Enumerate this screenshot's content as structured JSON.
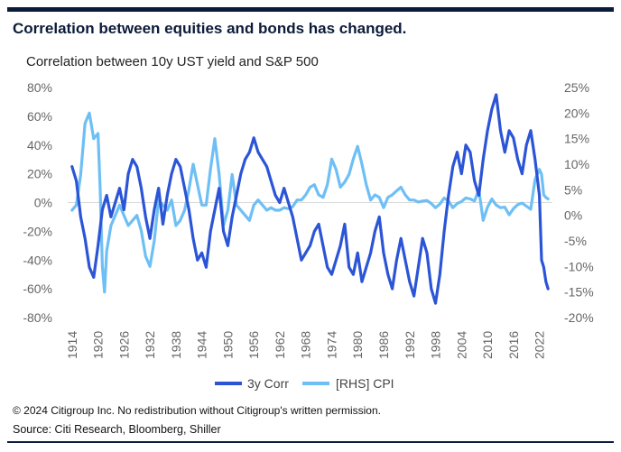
{
  "headline": "Correlation between equities and bonds has changed.",
  "footnote": "© 2024 Citigroup Inc. No redistribution without Citigroup's written permission.",
  "source": "Source: Citi Research, Bloomberg, Shiller",
  "colors": {
    "corr": "#2b55d6",
    "cpi": "#6ebff5",
    "text": "#0b1b3a"
  },
  "chart_data": {
    "type": "line",
    "title": "Correlation between 10y UST yield and S&P 500",
    "x_ticks": [
      "1914",
      "1920",
      "1926",
      "1932",
      "1938",
      "1944",
      "1950",
      "1956",
      "1962",
      "1968",
      "1974",
      "1980",
      "1986",
      "1992",
      "1998",
      "2004",
      "2010",
      "2016",
      "2022"
    ],
    "xlim": [
      1913,
      2025
    ],
    "y_left": {
      "ticks": [
        "80%",
        "60%",
        "40%",
        "20%",
        "0%",
        "-20%",
        "-40%",
        "-60%",
        "-80%"
      ],
      "lim": [
        -80,
        80
      ]
    },
    "y_right": {
      "ticks": [
        "25%",
        "20%",
        "15%",
        "10%",
        "5%",
        "0%",
        "-5%",
        "-10%",
        "-15%",
        "-20%"
      ],
      "lim": [
        -20,
        25
      ]
    },
    "legend_position": "bottom-center",
    "series": [
      {
        "name": "3y Corr",
        "axis": "left",
        "points": [
          [
            1914,
            25
          ],
          [
            1915,
            15
          ],
          [
            1916,
            -10
          ],
          [
            1917,
            -25
          ],
          [
            1918,
            -45
          ],
          [
            1919,
            -52
          ],
          [
            1920,
            -30
          ],
          [
            1921,
            -5
          ],
          [
            1922,
            5
          ],
          [
            1923,
            -10
          ],
          [
            1924,
            0
          ],
          [
            1925,
            10
          ],
          [
            1926,
            -5
          ],
          [
            1927,
            20
          ],
          [
            1928,
            30
          ],
          [
            1929,
            25
          ],
          [
            1930,
            10
          ],
          [
            1931,
            -10
          ],
          [
            1932,
            -25
          ],
          [
            1933,
            -5
          ],
          [
            1934,
            10
          ],
          [
            1935,
            -15
          ],
          [
            1936,
            5
          ],
          [
            1937,
            20
          ],
          [
            1938,
            30
          ],
          [
            1939,
            25
          ],
          [
            1940,
            10
          ],
          [
            1941,
            -5
          ],
          [
            1942,
            -25
          ],
          [
            1943,
            -40
          ],
          [
            1944,
            -35
          ],
          [
            1945,
            -45
          ],
          [
            1946,
            -20
          ],
          [
            1947,
            -5
          ],
          [
            1948,
            10
          ],
          [
            1949,
            -20
          ],
          [
            1950,
            -30
          ],
          [
            1951,
            -10
          ],
          [
            1952,
            5
          ],
          [
            1953,
            20
          ],
          [
            1954,
            30
          ],
          [
            1955,
            35
          ],
          [
            1956,
            45
          ],
          [
            1957,
            35
          ],
          [
            1958,
            30
          ],
          [
            1959,
            25
          ],
          [
            1960,
            15
          ],
          [
            1961,
            5
          ],
          [
            1962,
            0
          ],
          [
            1963,
            10
          ],
          [
            1964,
            0
          ],
          [
            1965,
            -10
          ],
          [
            1966,
            -25
          ],
          [
            1967,
            -40
          ],
          [
            1968,
            -35
          ],
          [
            1969,
            -30
          ],
          [
            1970,
            -20
          ],
          [
            1971,
            -15
          ],
          [
            1972,
            -30
          ],
          [
            1973,
            -45
          ],
          [
            1974,
            -50
          ],
          [
            1975,
            -40
          ],
          [
            1976,
            -30
          ],
          [
            1977,
            -15
          ],
          [
            1978,
            -45
          ],
          [
            1979,
            -50
          ],
          [
            1980,
            -35
          ],
          [
            1981,
            -55
          ],
          [
            1982,
            -45
          ],
          [
            1983,
            -35
          ],
          [
            1984,
            -20
          ],
          [
            1985,
            -10
          ],
          [
            1986,
            -35
          ],
          [
            1987,
            -50
          ],
          [
            1988,
            -60
          ],
          [
            1989,
            -40
          ],
          [
            1990,
            -25
          ],
          [
            1991,
            -40
          ],
          [
            1992,
            -55
          ],
          [
            1993,
            -65
          ],
          [
            1994,
            -45
          ],
          [
            1995,
            -25
          ],
          [
            1996,
            -35
          ],
          [
            1997,
            -60
          ],
          [
            1998,
            -70
          ],
          [
            1999,
            -50
          ],
          [
            2000,
            -20
          ],
          [
            2001,
            5
          ],
          [
            2002,
            25
          ],
          [
            2003,
            35
          ],
          [
            2004,
            20
          ],
          [
            2005,
            40
          ],
          [
            2006,
            35
          ],
          [
            2007,
            15
          ],
          [
            2008,
            5
          ],
          [
            2009,
            30
          ],
          [
            2010,
            50
          ],
          [
            2011,
            65
          ],
          [
            2012,
            75
          ],
          [
            2013,
            50
          ],
          [
            2014,
            35
          ],
          [
            2015,
            50
          ],
          [
            2016,
            45
          ],
          [
            2017,
            30
          ],
          [
            2018,
            20
          ],
          [
            2019,
            40
          ],
          [
            2020,
            50
          ],
          [
            2021,
            30
          ],
          [
            2022,
            5
          ],
          [
            2022.5,
            -40
          ],
          [
            2023,
            -45
          ],
          [
            2023.5,
            -55
          ],
          [
            2024,
            -60
          ]
        ]
      },
      {
        "name": "[RHS] CPI",
        "axis": "right",
        "points": [
          [
            1914,
            1
          ],
          [
            1915,
            2
          ],
          [
            1916,
            8
          ],
          [
            1917,
            18
          ],
          [
            1918,
            20
          ],
          [
            1919,
            15
          ],
          [
            1920,
            16
          ],
          [
            1920.5,
            5
          ],
          [
            1921,
            -10
          ],
          [
            1921.5,
            -15
          ],
          [
            1922,
            -7
          ],
          [
            1923,
            -2
          ],
          [
            1924,
            0
          ],
          [
            1925,
            2
          ],
          [
            1926,
            0
          ],
          [
            1927,
            -2
          ],
          [
            1928,
            -1
          ],
          [
            1929,
            0
          ],
          [
            1930,
            -3
          ],
          [
            1931,
            -8
          ],
          [
            1932,
            -10
          ],
          [
            1933,
            -5
          ],
          [
            1934,
            3
          ],
          [
            1935,
            2
          ],
          [
            1936,
            1
          ],
          [
            1937,
            3
          ],
          [
            1938,
            -2
          ],
          [
            1939,
            -1
          ],
          [
            1940,
            1
          ],
          [
            1941,
            5
          ],
          [
            1942,
            10
          ],
          [
            1943,
            6
          ],
          [
            1944,
            2
          ],
          [
            1945,
            2
          ],
          [
            1946,
            9
          ],
          [
            1947,
            15
          ],
          [
            1948,
            8
          ],
          [
            1949,
            -2
          ],
          [
            1950,
            1
          ],
          [
            1951,
            8
          ],
          [
            1952,
            2
          ],
          [
            1953,
            1
          ],
          [
            1954,
            0
          ],
          [
            1955,
            -1
          ],
          [
            1956,
            2
          ],
          [
            1957,
            3
          ],
          [
            1958,
            2
          ],
          [
            1959,
            1
          ],
          [
            1960,
            1.5
          ],
          [
            1961,
            1
          ],
          [
            1962,
            1
          ],
          [
            1963,
            1.5
          ],
          [
            1964,
            1.3
          ],
          [
            1965,
            1.7
          ],
          [
            1966,
            3
          ],
          [
            1967,
            3
          ],
          [
            1968,
            4
          ],
          [
            1969,
            5.5
          ],
          [
            1970,
            6
          ],
          [
            1971,
            4
          ],
          [
            1972,
            3.5
          ],
          [
            1973,
            6
          ],
          [
            1974,
            11
          ],
          [
            1975,
            9
          ],
          [
            1976,
            5.5
          ],
          [
            1977,
            6.5
          ],
          [
            1978,
            8
          ],
          [
            1979,
            11
          ],
          [
            1980,
            13.5
          ],
          [
            1981,
            10
          ],
          [
            1982,
            6
          ],
          [
            1983,
            3
          ],
          [
            1984,
            4
          ],
          [
            1985,
            3.5
          ],
          [
            1986,
            1.5
          ],
          [
            1987,
            3.5
          ],
          [
            1988,
            4
          ],
          [
            1989,
            4.8
          ],
          [
            1990,
            5.5
          ],
          [
            1991,
            4
          ],
          [
            1992,
            3
          ],
          [
            1993,
            3
          ],
          [
            1994,
            2.6
          ],
          [
            1995,
            2.8
          ],
          [
            1996,
            2.9
          ],
          [
            1997,
            2.3
          ],
          [
            1998,
            1.5
          ],
          [
            1999,
            2.2
          ],
          [
            2000,
            3.4
          ],
          [
            2001,
            2.8
          ],
          [
            2002,
            1.5
          ],
          [
            2003,
            2.3
          ],
          [
            2004,
            2.7
          ],
          [
            2005,
            3.4
          ],
          [
            2006,
            3.2
          ],
          [
            2007,
            2.8
          ],
          [
            2008,
            5
          ],
          [
            2009,
            -1
          ],
          [
            2010,
            1.6
          ],
          [
            2011,
            3.2
          ],
          [
            2012,
            2
          ],
          [
            2013,
            1.5
          ],
          [
            2014,
            1.6
          ],
          [
            2015,
            0.1
          ],
          [
            2016,
            1.3
          ],
          [
            2017,
            2.1
          ],
          [
            2018,
            2.4
          ],
          [
            2019,
            1.8
          ],
          [
            2020,
            1.2
          ],
          [
            2021,
            7
          ],
          [
            2022,
            9
          ],
          [
            2022.5,
            8
          ],
          [
            2023,
            4
          ],
          [
            2023.5,
            3.5
          ],
          [
            2024,
            3.2
          ]
        ]
      }
    ]
  }
}
